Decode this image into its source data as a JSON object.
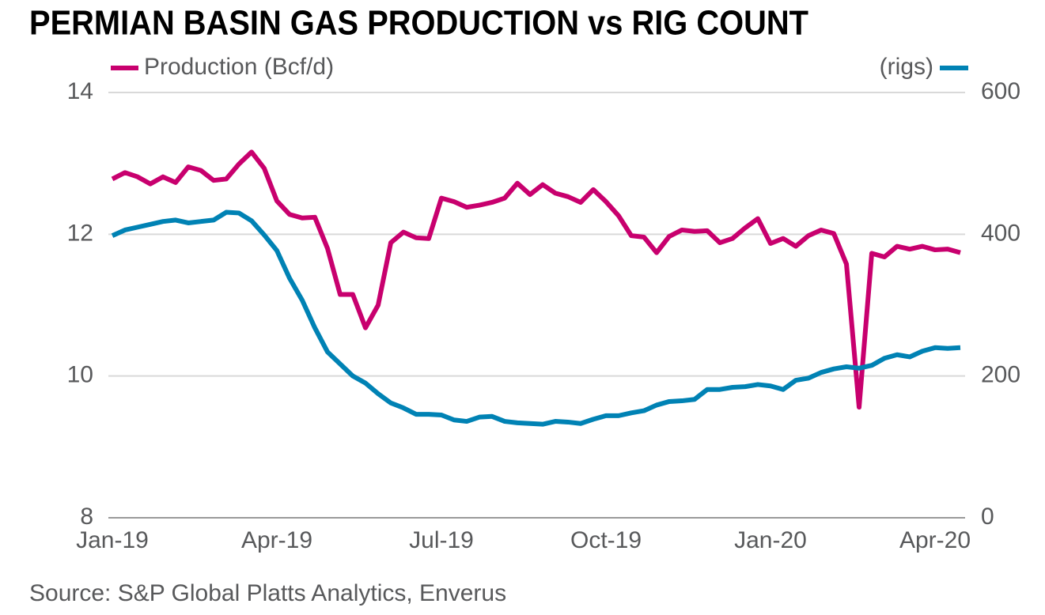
{
  "chart_data": {
    "type": "line",
    "title": "PERMIAN BASIN GAS PRODUCTION vs RIG COUNT",
    "source": "Source: S&P Global Platts Analytics, Enverus",
    "categories": [
      "Jan-19",
      null,
      null,
      null,
      null,
      null,
      null,
      null,
      null,
      null,
      null,
      null,
      null,
      "Apr-19",
      null,
      null,
      null,
      null,
      null,
      null,
      null,
      null,
      null,
      null,
      null,
      null,
      "Jul-19",
      null,
      null,
      null,
      null,
      null,
      null,
      null,
      null,
      null,
      null,
      null,
      null,
      "Oct-19",
      null,
      null,
      null,
      null,
      null,
      null,
      null,
      null,
      null,
      null,
      null,
      null,
      "Jan-20",
      null,
      null,
      null,
      null,
      null,
      null,
      null,
      null,
      null,
      null,
      null,
      null,
      "Apr-20",
      null,
      null
    ],
    "series": [
      {
        "name": "Production (Bcf/d)",
        "color": "#c8006e",
        "axis": "y",
        "values": [
          12.78,
          12.87,
          12.81,
          12.71,
          12.81,
          12.73,
          12.95,
          12.9,
          12.76,
          12.78,
          12.99,
          13.16,
          12.93,
          12.47,
          12.28,
          12.23,
          12.24,
          11.8,
          11.15,
          11.15,
          10.68,
          11.0,
          11.88,
          12.03,
          11.95,
          11.94,
          12.51,
          12.46,
          12.38,
          12.41,
          12.45,
          12.51,
          12.72,
          12.56,
          12.7,
          12.58,
          12.53,
          12.45,
          12.63,
          12.46,
          12.26,
          11.98,
          11.96,
          11.74,
          11.97,
          12.06,
          12.04,
          12.05,
          11.88,
          11.94,
          12.09,
          12.22,
          11.87,
          11.94,
          11.83,
          11.98,
          12.06,
          12.01,
          11.58,
          9.56,
          11.73,
          11.68,
          11.83,
          11.79,
          11.83,
          11.78,
          11.79,
          11.74
        ]
      },
      {
        "name": "(rigs)",
        "color": "#0082b4",
        "axis": "y2",
        "values": [
          398,
          406,
          410,
          414,
          418,
          420,
          416,
          418,
          420,
          431,
          430,
          419,
          399,
          377,
          338,
          307,
          268,
          234,
          217,
          200,
          190,
          175,
          162,
          155,
          146,
          146,
          145,
          138,
          136,
          142,
          143,
          136,
          134,
          133,
          132,
          136,
          135,
          133,
          139,
          144,
          144,
          148,
          151,
          159,
          164,
          165,
          167,
          181,
          181,
          184,
          185,
          188,
          186,
          181,
          194,
          197,
          205,
          210,
          213,
          211,
          215,
          225,
          230,
          227,
          235,
          240,
          239,
          240
        ]
      }
    ],
    "ylim": [
      8,
      14
    ],
    "yticks": [
      8,
      10,
      12,
      14
    ],
    "y2lim": [
      0,
      600
    ],
    "y2ticks": [
      0,
      200,
      400,
      600
    ],
    "grid": true
  }
}
